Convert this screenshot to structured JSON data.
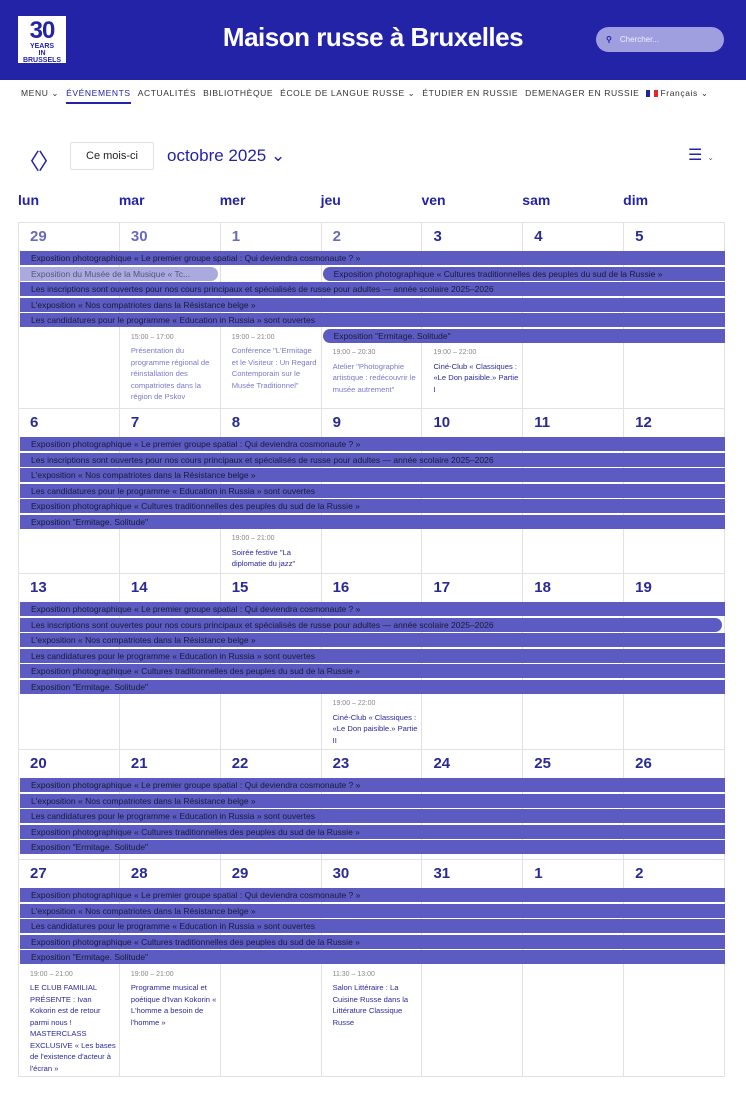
{
  "header": {
    "logo_text": "30 YEARS IN BRUSSELS",
    "title": "Maison russe à Bruxelles",
    "search_placeholder": "Chercher...",
    "search_icon": "search-icon"
  },
  "nav": [
    {
      "label": "MENU ⌄"
    },
    {
      "label": "ÉVÉNEMENTS",
      "active": true
    },
    {
      "label": "ACTUALITÉS"
    },
    {
      "label": "BIBLIOTHÈQUE"
    },
    {
      "label": "ÉCOLE DE LANGUE RUSSE ⌄"
    },
    {
      "label": "ÉTUDIER EN RUSSIE"
    },
    {
      "label": "DEMENAGER EN RUSSIE"
    },
    {
      "label": "Français ⌄",
      "flag": "fr"
    }
  ],
  "toolbar": {
    "prev": "〈",
    "next": "〉",
    "today": "Ce mois-ci",
    "month": "octobre 2025 ⌄",
    "view_icon": "☰",
    "view_caret": "⌄"
  },
  "weekdays": [
    "lun",
    "mar",
    "mer",
    "jeu",
    "ven",
    "sam",
    "dim"
  ],
  "colors": {
    "brand": "#2323a7",
    "event_bar": "#5b5bc1",
    "past_bar": "#aaaadf"
  },
  "weeks": [
    {
      "days": [
        {
          "d": "29",
          "past": true
        },
        {
          "d": "30",
          "past": true
        },
        {
          "d": "1",
          "past": true
        },
        {
          "d": "2",
          "past": true
        },
        {
          "d": "3"
        },
        {
          "d": "4"
        },
        {
          "d": "5"
        }
      ],
      "bars": [
        {
          "title": "Exposition photographique « Le premier groupe spatial : Qui deviendra cosmonaute ? »",
          "from": 0,
          "to": 6,
          "starts": false,
          "ends": false
        },
        {
          "title": "Exposition du Musée de la Musique « Tc...",
          "from": 0,
          "to": 1,
          "starts": false,
          "ends": true,
          "past": true
        },
        {
          "title": "Les inscriptions sont ouvertes pour nos cours principaux et spécialisés de russe pour adultes — année scolaire 2025–2026",
          "from": 0,
          "to": 6,
          "starts": false,
          "ends": false
        },
        {
          "title": "L'exposition « Nos compatriotes dans la Résistance belge »",
          "from": 0,
          "to": 6,
          "starts": false,
          "ends": false
        },
        {
          "title": "Les candidatures pour le programme « Education in Russia » sont ouvertes",
          "from": 0,
          "to": 6,
          "starts": false,
          "ends": false
        },
        {
          "title": "Exposition photographique « Cultures traditionnelles des peuples du sud de la Russie »",
          "from": 3,
          "to": 6,
          "starts": true,
          "ends": false
        },
        {
          "title": "Exposition \"Ermitage. Solitude\"",
          "from": 3,
          "to": 6,
          "starts": true,
          "ends": false
        }
      ],
      "timed": [
        {
          "day": 1,
          "time": "15:00 – 17:00",
          "title": "Présentation du programme régional de réinstallation des compatriotes dans la région de Pskov",
          "past": true
        },
        {
          "day": 2,
          "time": "19:00 – 21:00",
          "title": "Conférence \"L'Ermitage et le Visiteur : Un Regard Contemporain sur le Musée Traditionnel\"",
          "past": true
        },
        {
          "day": 3,
          "time": "19:00 – 20:30",
          "title": "Atelier \"Photographie artistique : redécouvrir le musée autrement\"",
          "past": true
        },
        {
          "day": 4,
          "time": "19:00 – 22:00",
          "title": "Ciné-Club « Classiques : «Le Don paisible.» Partie I"
        }
      ]
    },
    {
      "days": [
        {
          "d": "6"
        },
        {
          "d": "7"
        },
        {
          "d": "8"
        },
        {
          "d": "9"
        },
        {
          "d": "10"
        },
        {
          "d": "11"
        },
        {
          "d": "12"
        }
      ],
      "bars": [
        {
          "title": "Exposition photographique « Le premier groupe spatial : Qui deviendra cosmonaute ? »",
          "from": 0,
          "to": 6
        },
        {
          "title": "Les inscriptions sont ouvertes pour nos cours principaux et spécialisés de russe pour adultes — année scolaire 2025–2026",
          "from": 0,
          "to": 6
        },
        {
          "title": "L'exposition « Nos compatriotes dans la Résistance belge »",
          "from": 0,
          "to": 6
        },
        {
          "title": "Les candidatures pour le programme « Education in Russia » sont ouvertes",
          "from": 0,
          "to": 6
        },
        {
          "title": "Exposition photographique « Cultures traditionnelles des peuples du sud de la Russie »",
          "from": 0,
          "to": 6
        },
        {
          "title": "Exposition \"Ermitage. Solitude\"",
          "from": 0,
          "to": 6
        }
      ],
      "timed": [
        {
          "day": 2,
          "time": "19:00 – 21:00",
          "title": "Soirée festive \"La diplomatie du jazz\""
        }
      ]
    },
    {
      "days": [
        {
          "d": "13"
        },
        {
          "d": "14"
        },
        {
          "d": "15"
        },
        {
          "d": "16"
        },
        {
          "d": "17"
        },
        {
          "d": "18"
        },
        {
          "d": "19"
        }
      ],
      "bars": [
        {
          "title": "Exposition photographique « Le premier groupe spatial : Qui deviendra cosmonaute ? »",
          "from": 0,
          "to": 6
        },
        {
          "title": "Les inscriptions sont ouvertes pour nos cours principaux et spécialisés de russe pour adultes — année scolaire 2025–2026",
          "from": 0,
          "to": 6,
          "ends": true
        },
        {
          "title": "L'exposition « Nos compatriotes dans la Résistance belge »",
          "from": 0,
          "to": 6
        },
        {
          "title": "Les candidatures pour le programme « Education in Russia » sont ouvertes",
          "from": 0,
          "to": 6
        },
        {
          "title": "Exposition photographique « Cultures traditionnelles des peuples du sud de la Russie »",
          "from": 0,
          "to": 6
        },
        {
          "title": "Exposition \"Ermitage. Solitude\"",
          "from": 0,
          "to": 6
        }
      ],
      "timed": [
        {
          "day": 3,
          "time": "19:00 – 22:00",
          "title": "Ciné-Club « Classiques : «Le Don paisible.» Partie II"
        }
      ]
    },
    {
      "days": [
        {
          "d": "20"
        },
        {
          "d": "21"
        },
        {
          "d": "22"
        },
        {
          "d": "23"
        },
        {
          "d": "24"
        },
        {
          "d": "25"
        },
        {
          "d": "26"
        }
      ],
      "bars": [
        {
          "title": "Exposition photographique « Le premier groupe spatial : Qui deviendra cosmonaute ? »",
          "from": 0,
          "to": 6
        },
        {
          "title": "L'exposition « Nos compatriotes dans la Résistance belge »",
          "from": 0,
          "to": 6
        },
        {
          "title": "Les candidatures pour le programme « Education in Russia » sont ouvertes",
          "from": 0,
          "to": 6
        },
        {
          "title": "Exposition photographique « Cultures traditionnelles des peuples du sud de la Russie »",
          "from": 0,
          "to": 6
        },
        {
          "title": "Exposition \"Ermitage. Solitude\"",
          "from": 0,
          "to": 6
        }
      ],
      "timed": []
    },
    {
      "days": [
        {
          "d": "27"
        },
        {
          "d": "28"
        },
        {
          "d": "29"
        },
        {
          "d": "30"
        },
        {
          "d": "31"
        },
        {
          "d": "1"
        },
        {
          "d": "2"
        }
      ],
      "bars": [
        {
          "title": "Exposition photographique « Le premier groupe spatial : Qui deviendra cosmonaute ? »",
          "from": 0,
          "to": 6
        },
        {
          "title": "L'exposition « Nos compatriotes dans la Résistance belge »",
          "from": 0,
          "to": 6
        },
        {
          "title": "Les candidatures pour le programme « Education in Russia » sont ouvertes",
          "from": 0,
          "to": 6
        },
        {
          "title": "Exposition photographique « Cultures traditionnelles des peuples du sud de la Russie »",
          "from": 0,
          "to": 6
        },
        {
          "title": "Exposition \"Ermitage. Solitude\"",
          "from": 0,
          "to": 6
        }
      ],
      "timed": [
        {
          "day": 0,
          "time": "19:00 – 21:00",
          "title": "LE CLUB FAMILIAL PRÉSENTE : Ivan Kokorin est de retour parmi nous ! MASTERCLASS EXCLUSIVE « Les bases de l'existence d'acteur à l'écran »"
        },
        {
          "day": 1,
          "time": "19:00 – 21:00",
          "title": "Programme musical et poétique d'Ivan Kokorin « L'homme a besoin de l'homme »"
        },
        {
          "day": 3,
          "time": "11:30 – 13:00",
          "title": "Salon Littéraire : La Cuisine Russe dans la Littérature Classique Russe"
        }
      ]
    }
  ]
}
